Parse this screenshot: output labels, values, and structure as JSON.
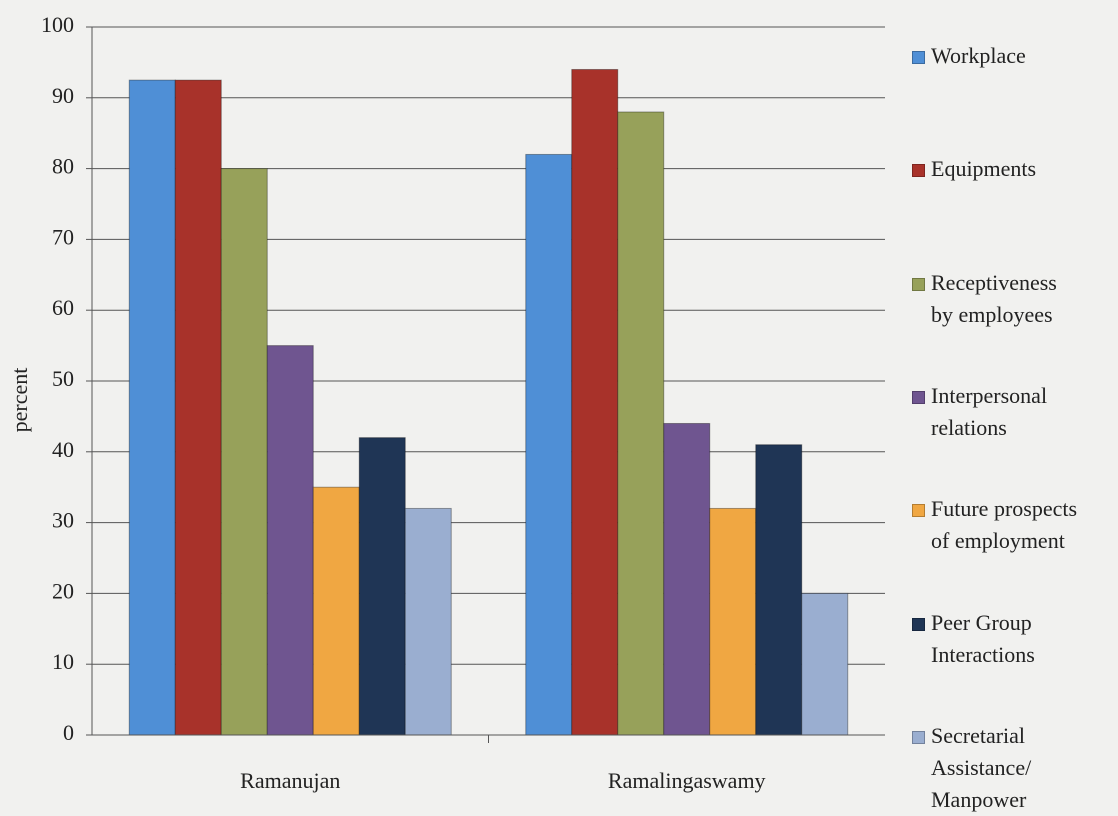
{
  "chart_data": {
    "type": "bar",
    "y_label": "percent",
    "categories": [
      "Ramanujan",
      "Ramalingaswamy"
    ],
    "series": [
      {
        "name": "Workplace",
        "color": "#4f8fd6",
        "values": [
          92.5,
          82
        ]
      },
      {
        "name": "Equipments",
        "color": "#a8322a",
        "values": [
          92.5,
          94
        ]
      },
      {
        "name": "Receptiveness\nby employees",
        "color": "#97a15a",
        "values": [
          80,
          88
        ]
      },
      {
        "name": "Interpersonal\nrelations",
        "color": "#6f5590",
        "values": [
          55,
          44
        ]
      },
      {
        "name": "Future prospects\nof employment",
        "color": "#f0a742",
        "values": [
          35,
          32
        ]
      },
      {
        "name": "Peer Group\nInteractions",
        "color": "#1f3555",
        "values": [
          42,
          41
        ]
      },
      {
        "name": "Secretarial\nAssistance/\nManpower",
        "color": "#9aaed0",
        "values": [
          32,
          20
        ]
      }
    ],
    "ylim": [
      0,
      100
    ],
    "yticks": [
      0,
      10,
      20,
      30,
      40,
      50,
      60,
      70,
      80,
      90,
      100
    ],
    "grid": true,
    "legend": "right"
  }
}
